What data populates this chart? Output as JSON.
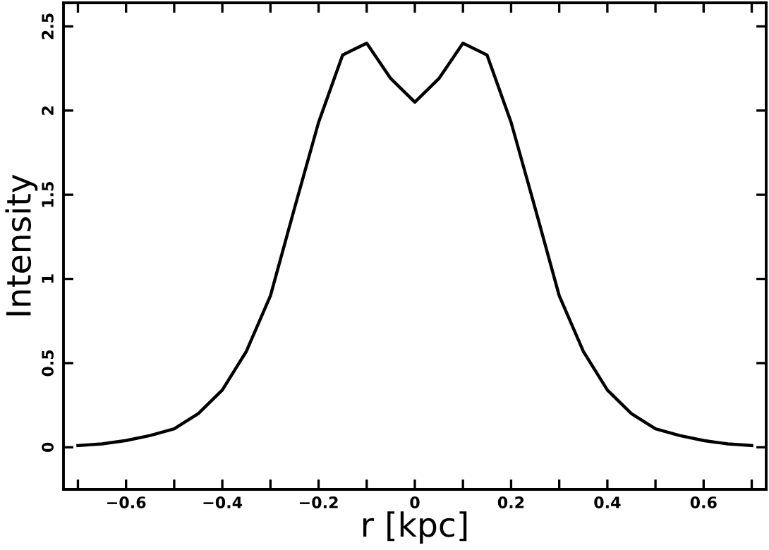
{
  "chart_data": {
    "type": "line",
    "xlabel": "r [kpc]",
    "ylabel": "Intensity",
    "x": [
      -0.7,
      -0.65,
      -0.6,
      -0.55,
      -0.5,
      -0.45,
      -0.4,
      -0.35,
      -0.3,
      -0.25,
      -0.2,
      -0.15,
      -0.1,
      -0.05,
      0,
      0.05,
      0.1,
      0.15,
      0.2,
      0.25,
      0.3,
      0.35,
      0.4,
      0.45,
      0.5,
      0.55,
      0.6,
      0.65,
      0.7
    ],
    "series": [
      {
        "color": "#000000",
        "values": [
          0.01,
          0.02,
          0.04,
          0.07,
          0.11,
          0.2,
          0.34,
          0.57,
          0.9,
          1.42,
          1.93,
          2.33,
          2.4,
          2.19,
          2.05,
          2.19,
          2.4,
          2.33,
          1.93,
          1.42,
          0.9,
          0.57,
          0.34,
          0.2,
          0.11,
          0.07,
          0.04,
          0.02,
          0.01
        ]
      }
    ],
    "xlim": [
      -0.73,
      0.73
    ],
    "ylim": [
      -0.25,
      2.64
    ],
    "xticks": [
      {
        "value": -0.7,
        "label": null
      },
      {
        "value": -0.6,
        "label": "−0.6"
      },
      {
        "value": -0.5,
        "label": null
      },
      {
        "value": -0.4,
        "label": "−0.4"
      },
      {
        "value": -0.3,
        "label": null
      },
      {
        "value": -0.2,
        "label": "−0.2"
      },
      {
        "value": -0.1,
        "label": null
      },
      0,
      {
        "value": 0.1,
        "label": null
      },
      0.2,
      {
        "value": 0.3,
        "label": null
      },
      0.4,
      {
        "value": 0.5,
        "label": null
      },
      0.6,
      {
        "value": 0.7,
        "label": null
      }
    ],
    "yticks": [
      0,
      0.5,
      1,
      1.5,
      2,
      2.5
    ],
    "grid": false,
    "legend": false,
    "marker": "none",
    "line_style": "solid"
  }
}
